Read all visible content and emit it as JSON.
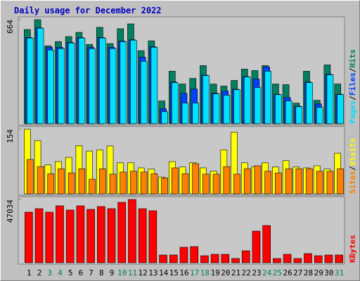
{
  "chart_data": [
    {
      "type": "bar",
      "title": "Daily usage for December 2022",
      "ylim": [
        0,
        664
      ],
      "yticks": [
        664
      ],
      "separator": "/",
      "series": [
        {
          "name": "Hits",
          "color": "#008060",
          "values": [
            601,
            664,
            497,
            524,
            556,
            583,
            506,
            615,
            511,
            606,
            637,
            466,
            529,
            145,
            335,
            253,
            289,
            371,
            253,
            240,
            276,
            348,
            339,
            371,
            253,
            249,
            131,
            335,
            149,
            375,
            253
          ]
        },
        {
          "name": "Files",
          "color": "#0040ff",
          "values": [
            550,
            612,
            488,
            488,
            520,
            550,
            488,
            550,
            488,
            528,
            536,
            425,
            492,
            95,
            266,
            194,
            221,
            310,
            194,
            208,
            220,
            300,
            285,
            362,
            188,
            167,
            112,
            266,
            126,
            316,
            188
          ]
        },
        {
          "name": "Pages",
          "color": "#00e0ff",
          "values": [
            547,
            610,
            470,
            479,
            515,
            547,
            479,
            547,
            479,
            524,
            533,
            398,
            488,
            77,
            262,
            131,
            131,
            307,
            190,
            181,
            217,
            298,
            231,
            335,
            185,
            145,
            108,
            262,
            104,
            312,
            185
          ]
        }
      ]
    },
    {
      "type": "bar",
      "ylim": [
        0,
        154
      ],
      "yticks": [
        154
      ],
      "separator": "/",
      "series": [
        {
          "name": "Visits",
          "color": "#ffff00",
          "values": [
            154,
            127,
            69,
            77,
            87,
            115,
            102,
            105,
            114,
            74,
            74,
            62,
            59,
            40,
            77,
            64,
            74,
            62,
            54,
            105,
            147,
            74,
            65,
            74,
            64,
            79,
            64,
            62,
            67,
            59,
            97
          ]
        },
        {
          "name": "Sites",
          "color": "#ff8000",
          "values": [
            82,
            65,
            48,
            60,
            50,
            60,
            35,
            60,
            47,
            52,
            54,
            52,
            48,
            38,
            62,
            48,
            72,
            47,
            47,
            65,
            47,
            60,
            67,
            54,
            50,
            60,
            60,
            60,
            54,
            54,
            60
          ]
        }
      ]
    },
    {
      "type": "bar",
      "ylim": [
        0,
        47034
      ],
      "yticks": [
        47034
      ],
      "categories": [
        "1",
        "2",
        "3",
        "4",
        "5",
        "6",
        "7",
        "8",
        "9",
        "10",
        "11",
        "12",
        "13",
        "14",
        "15",
        "16",
        "17",
        "18",
        "19",
        "20",
        "21",
        "22",
        "23",
        "24",
        "25",
        "26",
        "27",
        "28",
        "29",
        "30",
        "31"
      ],
      "label_colors": [
        "#000000",
        "#000000",
        "#008060",
        "#008060",
        "#000000",
        "#000000",
        "#000000",
        "#000000",
        "#000000",
        "#008060",
        "#008060",
        "#000000",
        "#000000",
        "#000000",
        "#000000",
        "#000000",
        "#008060",
        "#008060",
        "#000000",
        "#000000",
        "#000000",
        "#000000",
        "#000000",
        "#008060",
        "#008060",
        "#000000",
        "#000000",
        "#000000",
        "#000000",
        "#000000",
        "#008060"
      ],
      "series": [
        {
          "name": "KBytes",
          "color": "#ff0000",
          "values": [
            37626,
            40240,
            37626,
            42330,
            39200,
            42330,
            39720,
            41810,
            40240,
            44944,
            47034,
            40240,
            38670,
            5750,
            5750,
            11500,
            12020,
            5230,
            6270,
            6270,
            3140,
            8886,
            23520,
            27700,
            3140,
            6270,
            3140,
            6790,
            5230,
            5750,
            5750
          ]
        }
      ]
    }
  ]
}
